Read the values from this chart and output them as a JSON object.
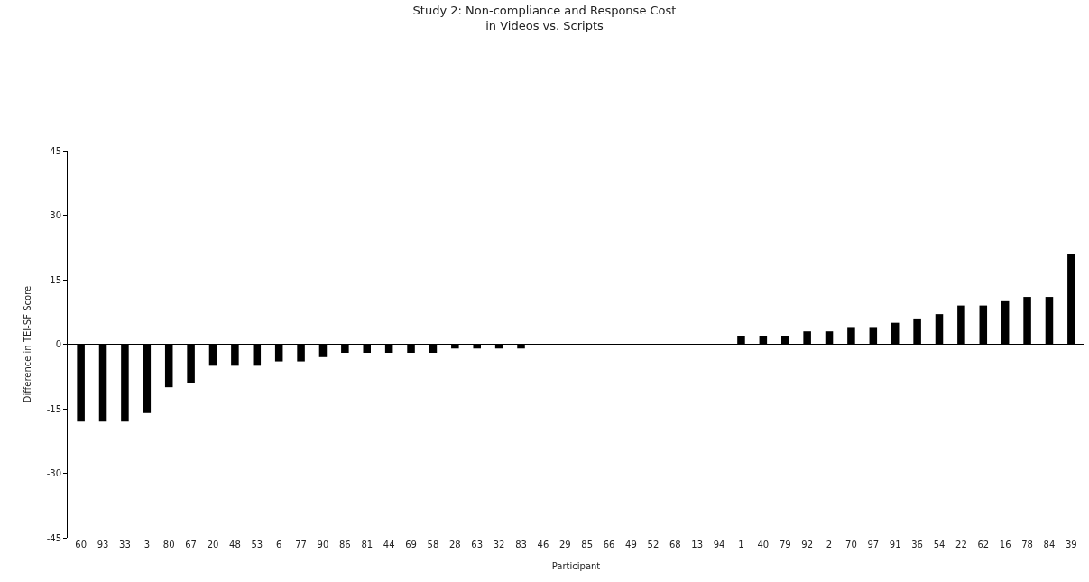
{
  "chart_data": {
    "type": "bar",
    "title": "Study 2: Non-compliance and Response Cost\nin Videos vs. Scripts",
    "xlabel": "Participant",
    "ylabel": "Difference in TEI-SF Score",
    "categories": [
      "60",
      "93",
      "33",
      "3",
      "80",
      "67",
      "20",
      "48",
      "53",
      "6",
      "77",
      "90",
      "86",
      "81",
      "44",
      "69",
      "58",
      "28",
      "63",
      "32",
      "83",
      "46",
      "29",
      "85",
      "66",
      "49",
      "52",
      "68",
      "13",
      "94",
      "1",
      "40",
      "79",
      "92",
      "2",
      "70",
      "97",
      "91",
      "36",
      "54",
      "22",
      "62",
      "16",
      "78",
      "84",
      "39"
    ],
    "values": [
      -18,
      -18,
      -18,
      -16,
      -10,
      -9,
      -5,
      -5,
      -5,
      -4,
      -4,
      -3,
      -2,
      -2,
      -2,
      -2,
      -2,
      -1,
      -1,
      -1,
      -1,
      0,
      0,
      0,
      0,
      0,
      0,
      0,
      0,
      0,
      2,
      2,
      2,
      3,
      3,
      4,
      4,
      5,
      6,
      7,
      9,
      9,
      10,
      11,
      11,
      21
    ],
    "color": "#000000",
    "ylim": [
      -45,
      45
    ],
    "yticks": [
      -45,
      -30,
      -15,
      0,
      15,
      30,
      45
    ],
    "legend": false
  }
}
